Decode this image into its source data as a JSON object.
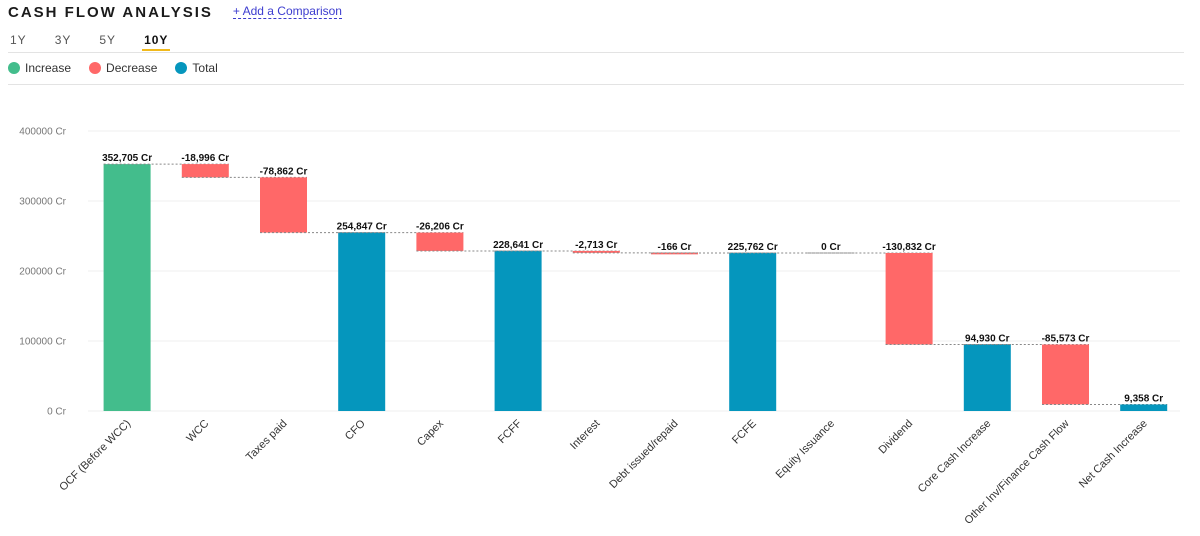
{
  "header": {
    "title": "CASH FLOW ANALYSIS",
    "compare_link": "+ Add a Comparison"
  },
  "tabs": [
    {
      "label": "1Y",
      "active": false
    },
    {
      "label": "3Y",
      "active": false
    },
    {
      "label": "5Y",
      "active": false
    },
    {
      "label": "10Y",
      "active": true
    }
  ],
  "legend": [
    {
      "label": "Increase",
      "color": "#43bd8c"
    },
    {
      "label": "Decrease",
      "color": "#ff6868"
    },
    {
      "label": "Total",
      "color": "#0596bd"
    }
  ],
  "colors": {
    "increase": "#43bd8c",
    "decrease": "#ff6868",
    "total": "#0596bd",
    "grid": "#efefef",
    "connector": "#888888"
  },
  "chart_data": {
    "type": "waterfall",
    "unit_suffix": " Cr",
    "ylim": [
      0,
      400000
    ],
    "yticks": [
      {
        "value": 0,
        "label": "0 Cr"
      },
      {
        "value": 100000,
        "label": "100000 Cr"
      },
      {
        "value": 200000,
        "label": "200000 Cr"
      },
      {
        "value": 300000,
        "label": "300000 Cr"
      },
      {
        "value": 400000,
        "label": "400000 Cr"
      }
    ],
    "bars": [
      {
        "category": "OCF (Before WCC)",
        "kind": "increase",
        "start": 0,
        "end": 352705,
        "label": "352,705 Cr"
      },
      {
        "category": "WCC",
        "kind": "decrease",
        "start": 352705,
        "end": 333709,
        "label": "-18,996 Cr"
      },
      {
        "category": "Taxes paid",
        "kind": "decrease",
        "start": 333709,
        "end": 254847,
        "label": "-78,862 Cr"
      },
      {
        "category": "CFO",
        "kind": "total",
        "start": 0,
        "end": 254847,
        "label": "254,847 Cr"
      },
      {
        "category": "Capex",
        "kind": "decrease",
        "start": 254847,
        "end": 228641,
        "label": "-26,206 Cr"
      },
      {
        "category": "FCFF",
        "kind": "total",
        "start": 0,
        "end": 228641,
        "label": "228,641 Cr"
      },
      {
        "category": "Interest",
        "kind": "decrease",
        "start": 228641,
        "end": 225928,
        "label": "-2,713 Cr"
      },
      {
        "category": "Debt issued/repaid",
        "kind": "decrease",
        "start": 225928,
        "end": 225762,
        "label": "-166 Cr"
      },
      {
        "category": "FCFE",
        "kind": "total",
        "start": 0,
        "end": 225762,
        "label": "225,762 Cr"
      },
      {
        "category": "Equity Issuance",
        "kind": "increase",
        "start": 225762,
        "end": 225762,
        "label": "0 Cr"
      },
      {
        "category": "Dividend",
        "kind": "decrease",
        "start": 225762,
        "end": 94930,
        "label": "-130,832 Cr"
      },
      {
        "category": "Core Cash Increase",
        "kind": "total",
        "start": 0,
        "end": 94930,
        "label": "94,930 Cr"
      },
      {
        "category": "Other Inv/Finance Cash Flow",
        "kind": "decrease",
        "start": 94930,
        "end": 9358,
        "label": "-85,573 Cr"
      },
      {
        "category": "Net Cash Increase",
        "kind": "total",
        "start": 0,
        "end": 9358,
        "label": "9,358 Cr"
      }
    ]
  }
}
